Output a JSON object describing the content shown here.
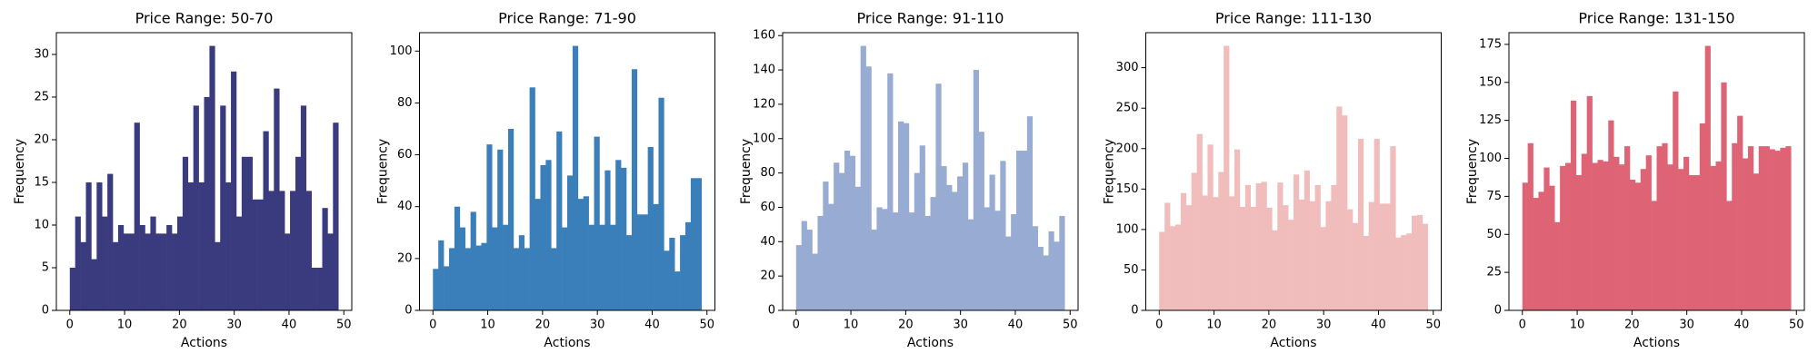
{
  "chart_data": [
    {
      "type": "histogram",
      "title": "Price Range: 50-70",
      "xlabel": "Actions",
      "ylabel": "Frequency",
      "color": "#3a3a7e",
      "bins": [
        0,
        0.98,
        1.96,
        2.94,
        3.92,
        4.9,
        5.88,
        6.86,
        7.84,
        8.82,
        9.8,
        10.78,
        11.76,
        12.74,
        13.72,
        14.7,
        15.68,
        16.66,
        17.64,
        18.62,
        19.6,
        20.58,
        21.56,
        22.54,
        23.52,
        24.5,
        25.48,
        26.46,
        27.44,
        28.42,
        29.4,
        30.38,
        31.36,
        32.34,
        33.32,
        34.3,
        35.28,
        36.26,
        37.24,
        38.22,
        39.2,
        40.18,
        41.16,
        42.14,
        43.12,
        44.1,
        45.08,
        46.06,
        47.04,
        48.02,
        49
      ],
      "values": [
        5,
        11,
        8,
        15,
        6,
        15,
        11,
        16,
        8,
        10,
        9,
        9,
        22,
        10,
        9,
        11,
        9,
        9,
        10,
        9,
        11,
        18,
        15,
        24,
        15,
        25,
        31,
        8,
        24,
        15,
        28,
        11,
        18,
        18,
        13,
        13,
        21,
        14,
        26,
        14,
        9,
        14,
        18,
        24,
        14,
        5,
        5,
        12,
        9,
        22
      ],
      "xlim": [
        -2.45,
        51.45
      ],
      "xticks": [
        0,
        10,
        20,
        30,
        40,
        50
      ],
      "ylim": [
        0,
        32.55
      ],
      "yticks": [
        0,
        5,
        10,
        15,
        20,
        25,
        30
      ]
    },
    {
      "type": "histogram",
      "title": "Price Range: 71-90",
      "xlabel": "Actions",
      "ylabel": "Frequency",
      "color": "#3a7fba",
      "bins": [
        0,
        0.98,
        1.96,
        2.94,
        3.92,
        4.9,
        5.88,
        6.86,
        7.84,
        8.82,
        9.8,
        10.78,
        11.76,
        12.74,
        13.72,
        14.7,
        15.68,
        16.66,
        17.64,
        18.62,
        19.6,
        20.58,
        21.56,
        22.54,
        23.52,
        24.5,
        25.48,
        26.46,
        27.44,
        28.42,
        29.4,
        30.38,
        31.36,
        32.34,
        33.32,
        34.3,
        35.28,
        36.26,
        37.24,
        38.22,
        39.2,
        40.18,
        41.16,
        42.14,
        43.12,
        44.1,
        45.08,
        46.06,
        47.04,
        48.02,
        49
      ],
      "values": [
        16,
        27,
        17,
        24,
        40,
        32,
        24,
        38,
        25,
        26,
        64,
        32,
        62,
        33,
        70,
        24,
        29,
        24,
        86,
        43,
        56,
        58,
        24,
        69,
        32,
        52,
        102,
        43,
        44,
        33,
        67,
        33,
        54,
        33,
        58,
        55,
        29,
        93,
        37,
        37,
        63,
        41,
        82,
        23,
        28,
        15,
        29,
        34,
        51,
        51
      ],
      "xlim": [
        -2.45,
        51.45
      ],
      "xticks": [
        0,
        10,
        20,
        30,
        40,
        50
      ],
      "ylim": [
        0,
        107.1
      ],
      "yticks": [
        0,
        20,
        40,
        60,
        80,
        100
      ]
    },
    {
      "type": "histogram",
      "title": "Price Range: 91-110",
      "xlabel": "Actions",
      "ylabel": "Frequency",
      "color": "#98abd2",
      "bins": [
        0,
        0.98,
        1.96,
        2.94,
        3.92,
        4.9,
        5.88,
        6.86,
        7.84,
        8.82,
        9.8,
        10.78,
        11.76,
        12.74,
        13.72,
        14.7,
        15.68,
        16.66,
        17.64,
        18.62,
        19.6,
        20.58,
        21.56,
        22.54,
        23.52,
        24.5,
        25.48,
        26.46,
        27.44,
        28.42,
        29.4,
        30.38,
        31.36,
        32.34,
        33.32,
        34.3,
        35.28,
        36.26,
        37.24,
        38.22,
        39.2,
        40.18,
        41.16,
        42.14,
        43.12,
        44.1,
        45.08,
        46.06,
        47.04,
        48.02,
        49
      ],
      "values": [
        38,
        52,
        47,
        33,
        55,
        75,
        62,
        86,
        80,
        93,
        90,
        72,
        154,
        142,
        47,
        60,
        59,
        138,
        57,
        110,
        109,
        57,
        80,
        96,
        55,
        66,
        132,
        84,
        73,
        69,
        78,
        86,
        53,
        140,
        104,
        60,
        79,
        58,
        87,
        43,
        56,
        93,
        93,
        113,
        49,
        37,
        32,
        46,
        40,
        55
      ],
      "xlim": [
        -2.45,
        51.45
      ],
      "xticks": [
        0,
        10,
        20,
        30,
        40,
        50
      ],
      "ylim": [
        0,
        161.7
      ],
      "yticks": [
        0,
        20,
        40,
        60,
        80,
        100,
        120,
        140,
        160
      ]
    },
    {
      "type": "histogram",
      "title": "Price Range: 111-130",
      "xlabel": "Actions",
      "ylabel": "Frequency",
      "color": "#f1bcbc",
      "bins": [
        0,
        0.98,
        1.96,
        2.94,
        3.92,
        4.9,
        5.88,
        6.86,
        7.84,
        8.82,
        9.8,
        10.78,
        11.76,
        12.74,
        13.72,
        14.7,
        15.68,
        16.66,
        17.64,
        18.62,
        19.6,
        20.58,
        21.56,
        22.54,
        23.52,
        24.5,
        25.48,
        26.46,
        27.44,
        28.42,
        29.4,
        30.38,
        31.36,
        32.34,
        33.32,
        34.3,
        35.28,
        36.26,
        37.24,
        38.22,
        39.2,
        40.18,
        41.16,
        42.14,
        43.12,
        44.1,
        45.08,
        46.06,
        47.04,
        48.02,
        49
      ],
      "values": [
        97,
        133,
        104,
        106,
        145,
        130,
        170,
        218,
        142,
        205,
        140,
        171,
        327,
        141,
        199,
        128,
        155,
        128,
        157,
        159,
        127,
        99,
        158,
        130,
        112,
        168,
        137,
        173,
        135,
        155,
        103,
        135,
        155,
        252,
        241,
        125,
        108,
        212,
        92,
        134,
        212,
        132,
        132,
        203,
        90,
        93,
        95,
        117,
        118,
        107
      ],
      "xlim": [
        -2.45,
        51.45
      ],
      "xticks": [
        0,
        10,
        20,
        30,
        40,
        50
      ],
      "ylim": [
        0,
        343.35
      ],
      "yticks": [
        0,
        50,
        100,
        150,
        200,
        250,
        300
      ]
    },
    {
      "type": "histogram",
      "title": "Price Range: 131-150",
      "xlabel": "Actions",
      "ylabel": "Frequency",
      "color": "#de6374",
      "bins": [
        0,
        0.98,
        1.96,
        2.94,
        3.92,
        4.9,
        5.88,
        6.86,
        7.84,
        8.82,
        9.8,
        10.78,
        11.76,
        12.74,
        13.72,
        14.7,
        15.68,
        16.66,
        17.64,
        18.62,
        19.6,
        20.58,
        21.56,
        22.54,
        23.52,
        24.5,
        25.48,
        26.46,
        27.44,
        28.42,
        29.4,
        30.38,
        31.36,
        32.34,
        33.32,
        34.3,
        35.28,
        36.26,
        37.24,
        38.22,
        39.2,
        40.18,
        41.16,
        42.14,
        43.12,
        44.1,
        45.08,
        46.06,
        47.04,
        48.02,
        49
      ],
      "values": [
        84,
        110,
        74,
        78,
        94,
        82,
        58,
        95,
        97,
        138,
        89,
        103,
        141,
        97,
        99,
        98,
        125,
        101,
        96,
        108,
        86,
        84,
        93,
        102,
        72,
        108,
        110,
        96,
        144,
        93,
        101,
        89,
        89,
        123,
        174,
        95,
        98,
        150,
        72,
        110,
        128,
        100,
        108,
        90,
        108,
        108,
        106,
        105,
        107,
        108
      ],
      "xlim": [
        -2.45,
        51.45
      ],
      "xticks": [
        0,
        10,
        20,
        30,
        40,
        50
      ],
      "ylim": [
        0,
        182.7
      ],
      "yticks": [
        0,
        25,
        50,
        75,
        100,
        125,
        150,
        175
      ]
    }
  ]
}
